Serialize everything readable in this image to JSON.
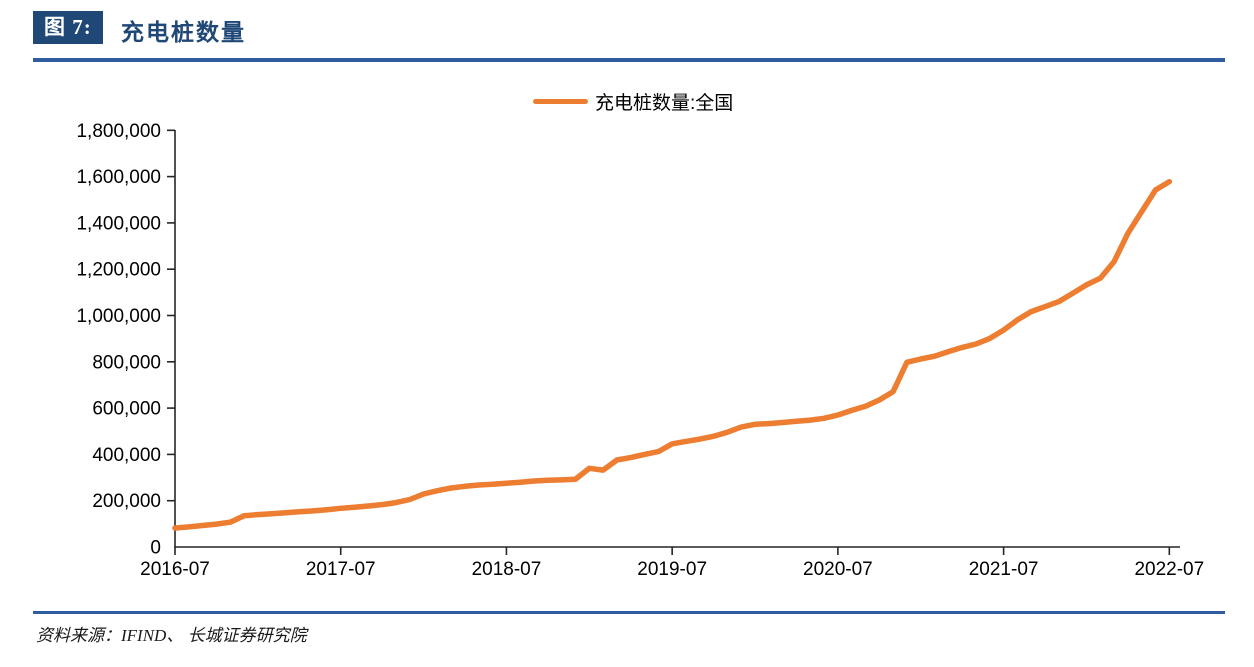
{
  "header": {
    "badge": "图 7:",
    "title": "充电桩数量"
  },
  "footer": {
    "source": "资料来源：IFIND、 长城证券研究院"
  },
  "colors": {
    "badge_navy": "#1F4877",
    "rule_blue": "#2E5C9E",
    "series_orange": "#ED7D31",
    "axis": "#262626"
  },
  "chart_data": {
    "type": "line",
    "title": "充电桩数量",
    "xlabel": "",
    "ylabel": "",
    "grid": false,
    "legend_position": "top-center",
    "ylim": [
      0,
      1800000
    ],
    "y_ticks": [
      0,
      200000,
      400000,
      600000,
      800000,
      1000000,
      1200000,
      1400000,
      1600000,
      1800000
    ],
    "y_tick_labels": [
      "0",
      "200,000",
      "400,000",
      "600,000",
      "800,000",
      "1,000,000",
      "1,200,000",
      "1,400,000",
      "1,600,000",
      "1,800,000"
    ],
    "x_tick_labels": [
      "2016-07",
      "2017-07",
      "2018-07",
      "2019-07",
      "2020-07",
      "2021-07",
      "2022-07"
    ],
    "x": [
      "2016-07",
      "2016-08",
      "2016-09",
      "2016-10",
      "2016-11",
      "2016-12",
      "2017-01",
      "2017-02",
      "2017-03",
      "2017-04",
      "2017-05",
      "2017-06",
      "2017-07",
      "2017-08",
      "2017-09",
      "2017-10",
      "2017-11",
      "2017-12",
      "2018-01",
      "2018-02",
      "2018-03",
      "2018-04",
      "2018-05",
      "2018-06",
      "2018-07",
      "2018-08",
      "2018-09",
      "2018-10",
      "2018-11",
      "2018-12",
      "2019-01",
      "2019-02",
      "2019-03",
      "2019-04",
      "2019-05",
      "2019-06",
      "2019-07",
      "2019-08",
      "2019-09",
      "2019-10",
      "2019-11",
      "2019-12",
      "2020-01",
      "2020-02",
      "2020-03",
      "2020-04",
      "2020-05",
      "2020-06",
      "2020-07",
      "2020-08",
      "2020-09",
      "2020-10",
      "2020-11",
      "2020-12",
      "2021-01",
      "2021-02",
      "2021-03",
      "2021-04",
      "2021-05",
      "2021-06",
      "2021-07",
      "2021-08",
      "2021-09",
      "2021-10",
      "2021-11",
      "2021-12",
      "2022-01",
      "2022-02",
      "2022-03",
      "2022-04",
      "2022-05",
      "2022-06",
      "2022-07"
    ],
    "series": [
      {
        "name": "充电桩数量:全国",
        "color": "#ED7D31",
        "values": [
          82000,
          87000,
          93000,
          99000,
          107000,
          135000,
          140000,
          144000,
          148000,
          152000,
          156000,
          161000,
          167000,
          172000,
          177000,
          183000,
          192000,
          205000,
          229000,
          243000,
          255000,
          262000,
          268000,
          271000,
          275000,
          280000,
          285000,
          288000,
          290000,
          293000,
          340000,
          332000,
          376000,
          386000,
          400000,
          412000,
          446000,
          456000,
          466000,
          478000,
          496000,
          518000,
          530000,
          533000,
          538000,
          543000,
          548000,
          556000,
          570000,
          590000,
          608000,
          635000,
          671000,
          798000,
          812000,
          824000,
          844000,
          862000,
          877000,
          901000,
          937000,
          981000,
          1017000,
          1038000,
          1060000,
          1096000,
          1132000,
          1161000,
          1233000,
          1355000,
          1449000,
          1542000,
          1578000
        ]
      }
    ]
  }
}
